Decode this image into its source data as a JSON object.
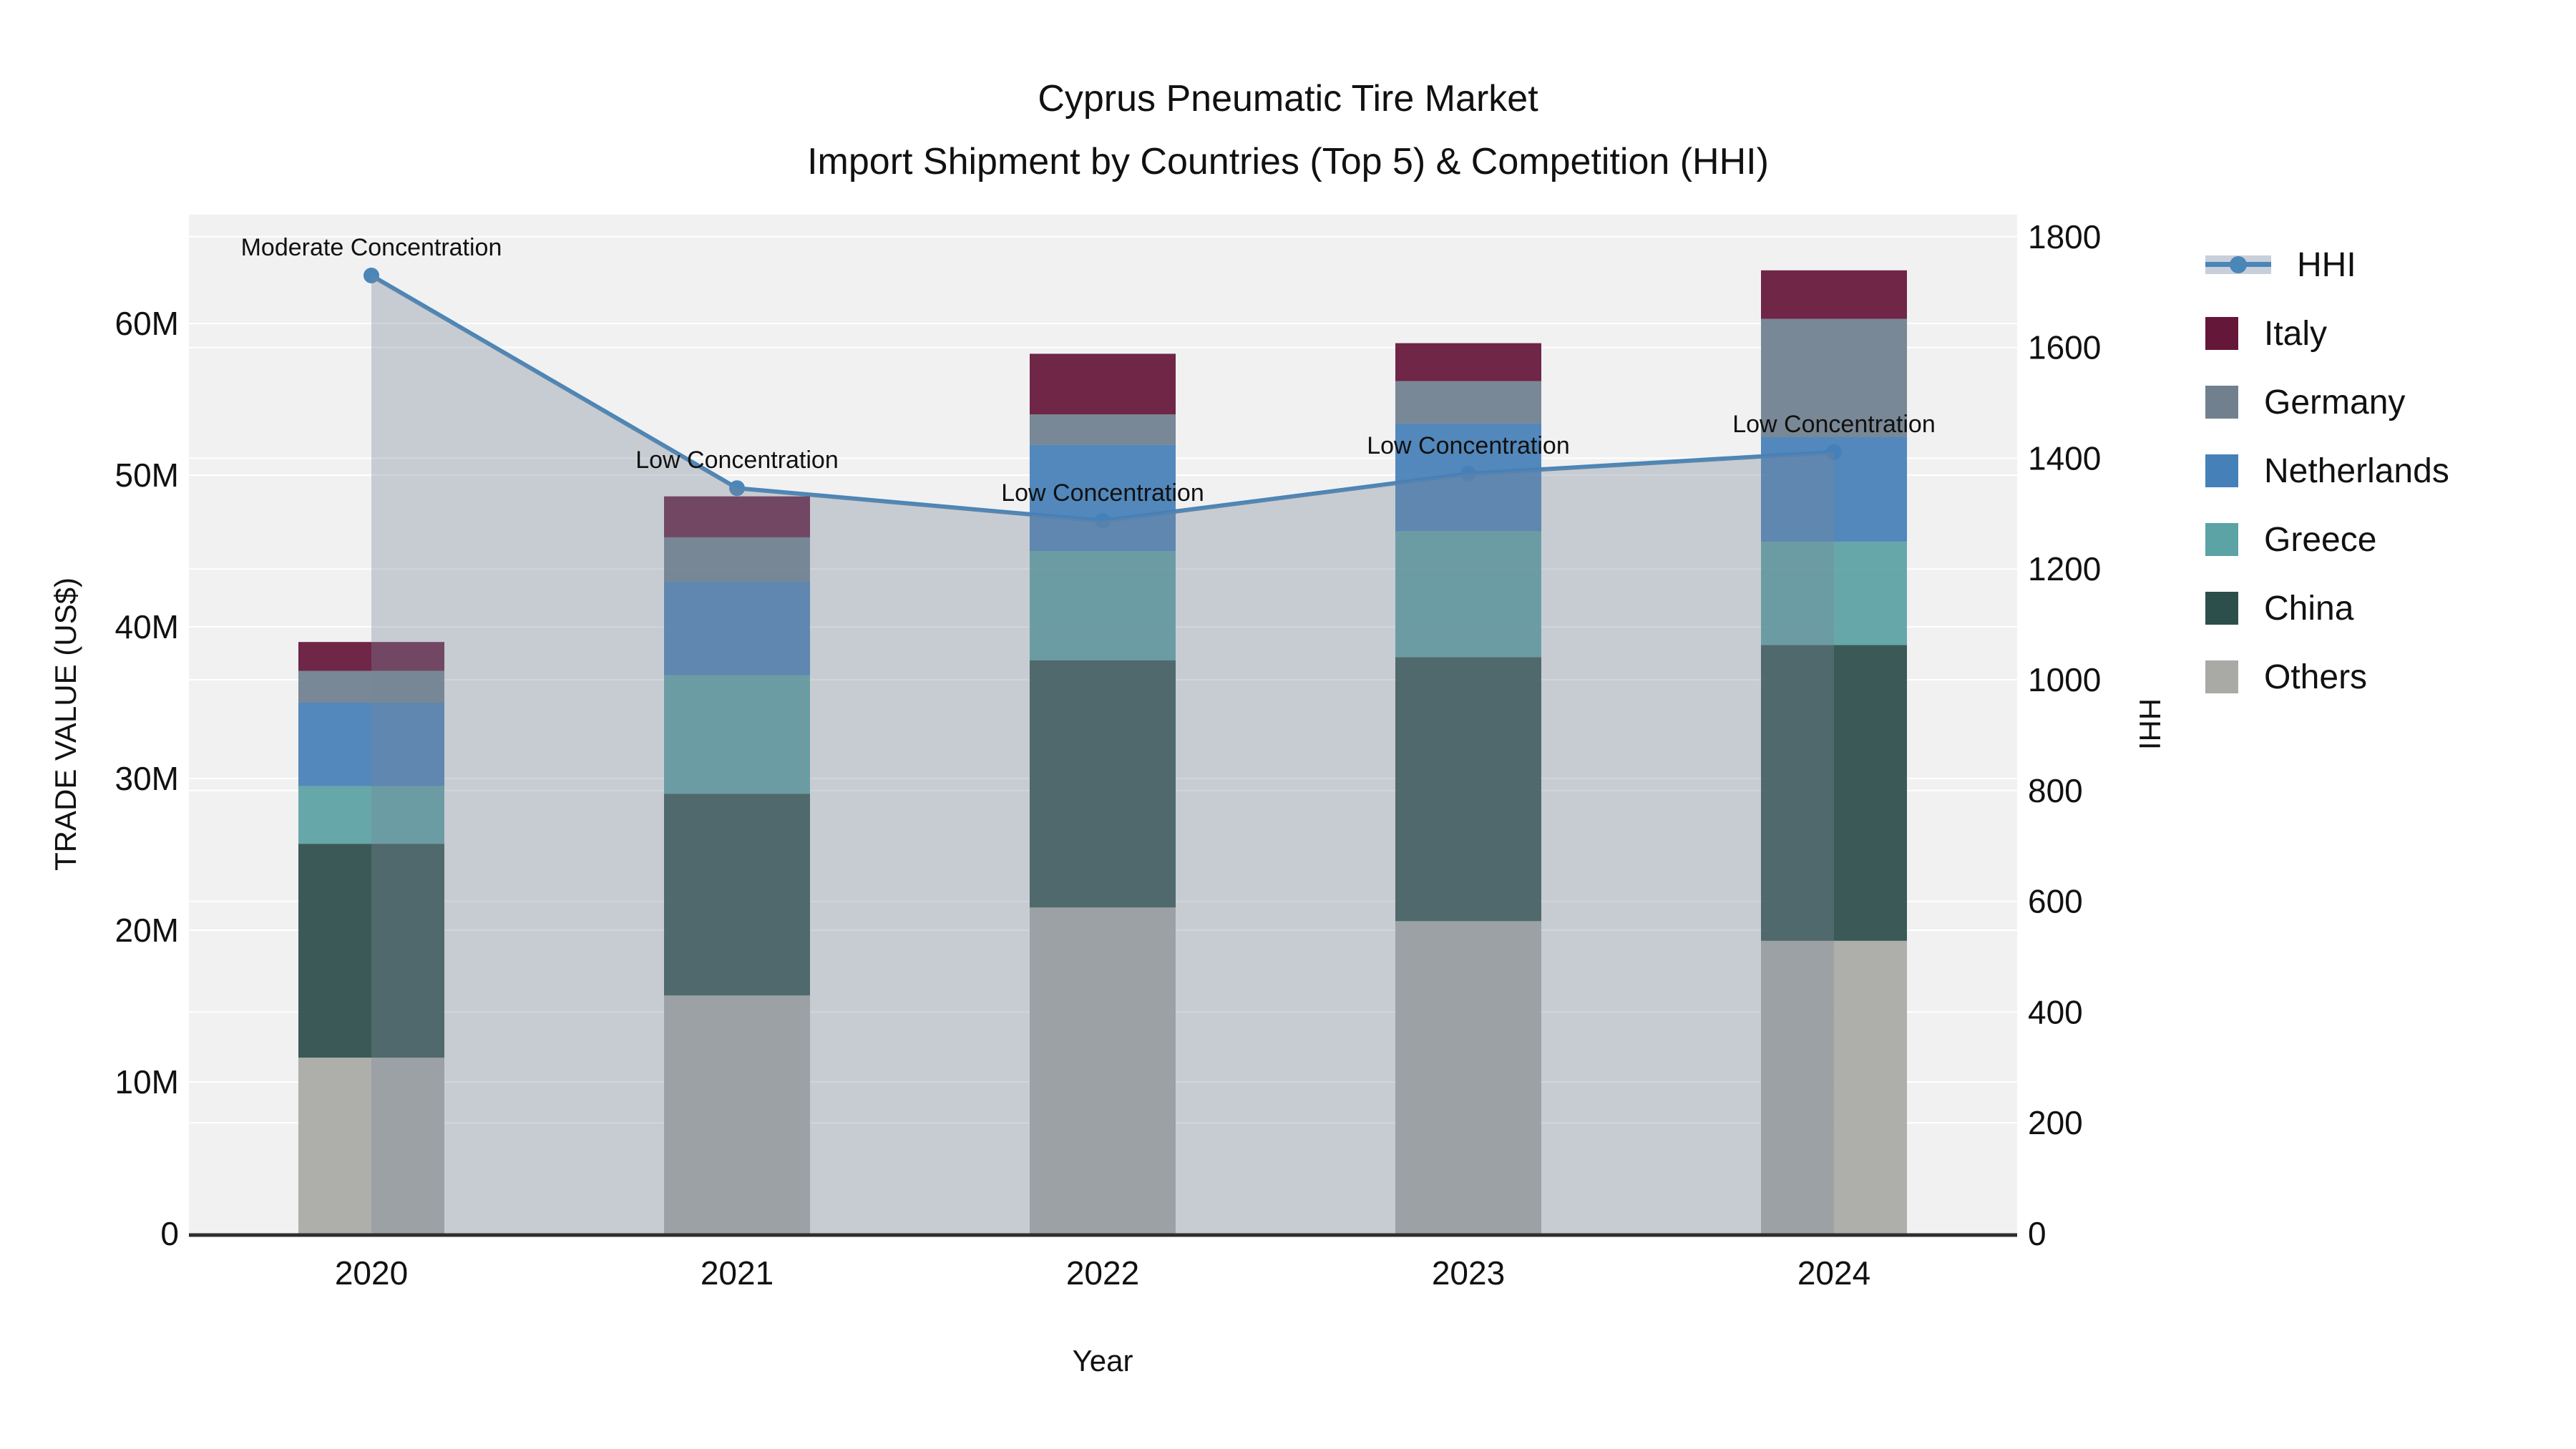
{
  "title": {
    "line1": "Cyprus Pneumatic Tire Market",
    "line2": "Import Shipment by Countries (Top 5) & Competition (HHI)"
  },
  "axes": {
    "x": {
      "title": "Year",
      "ticks": [
        "2020",
        "2021",
        "2022",
        "2023",
        "2024"
      ]
    },
    "y_left": {
      "title": "TRADE VALUE (US$)",
      "ticks": [
        {
          "label": "0",
          "value": 0
        },
        {
          "label": "10M",
          "value": 10
        },
        {
          "label": "20M",
          "value": 20
        },
        {
          "label": "30M",
          "value": 30
        },
        {
          "label": "40M",
          "value": 40
        },
        {
          "label": "50M",
          "value": 50
        },
        {
          "label": "60M",
          "value": 60
        }
      ]
    },
    "y_right": {
      "title": "HHI",
      "ticks": [
        {
          "label": "0",
          "value": 0
        },
        {
          "label": "200",
          "value": 200
        },
        {
          "label": "400",
          "value": 400
        },
        {
          "label": "600",
          "value": 600
        },
        {
          "label": "800",
          "value": 800
        },
        {
          "label": "1000",
          "value": 1000
        },
        {
          "label": "1200",
          "value": 1200
        },
        {
          "label": "1400",
          "value": 1400
        },
        {
          "label": "1600",
          "value": 1600
        },
        {
          "label": "1800",
          "value": 1800
        }
      ]
    }
  },
  "chart_data": {
    "type": "combo: stacked-bar (left axis) + line-with-area (right axis)",
    "categories": [
      "2020",
      "2021",
      "2022",
      "2023",
      "2024"
    ],
    "bar_unit": "US$ millions",
    "stack_order_bottom_to_top": [
      "Others",
      "China",
      "Greece",
      "Netherlands",
      "Germany",
      "Italy"
    ],
    "series": [
      {
        "name": "Italy",
        "color": "#65173a",
        "values": [
          1.9,
          2.7,
          4.0,
          2.5,
          3.2
        ]
      },
      {
        "name": "Germany",
        "color": "#70808f",
        "values": [
          2.1,
          2.9,
          2.0,
          2.8,
          7.8
        ]
      },
      {
        "name": "Netherlands",
        "color": "#4680b8",
        "values": [
          5.5,
          6.2,
          7.0,
          7.1,
          6.9
        ]
      },
      {
        "name": "Greece",
        "color": "#5ba3a4",
        "values": [
          3.8,
          7.8,
          7.2,
          8.3,
          6.8
        ]
      },
      {
        "name": "China",
        "color": "#2d4f4b",
        "values": [
          14.1,
          13.3,
          16.3,
          17.4,
          19.5
        ]
      },
      {
        "name": "Others",
        "color": "#a9aaa6",
        "values": [
          11.6,
          15.7,
          21.5,
          20.6,
          19.3
        ]
      }
    ],
    "hhi": {
      "name": "HHI",
      "line_color": "#4a86b8",
      "area_color": "rgba(119,136,153,0.35)",
      "values": [
        1730,
        1346,
        1287,
        1372,
        1411
      ],
      "annotations": [
        "Moderate Concentration",
        "Low Concentration",
        "Low Concentration",
        "Low Concentration",
        "Low Concentration"
      ]
    },
    "y_left_range_m": [
      0,
      67.2
    ],
    "y_right_range": [
      0,
      1840
    ],
    "grid": true,
    "legend_position": "right"
  },
  "legend": {
    "items": [
      {
        "label": "HHI",
        "type": "line"
      },
      {
        "label": "Italy",
        "series": "Italy"
      },
      {
        "label": "Germany",
        "series": "Germany"
      },
      {
        "label": "Netherlands",
        "series": "Netherlands"
      },
      {
        "label": "Greece",
        "series": "Greece"
      },
      {
        "label": "China",
        "series": "China"
      },
      {
        "label": "Others",
        "series": "Others"
      }
    ]
  },
  "colors": {
    "plot_bg": "#f1f1f2",
    "grid": "#ffffff",
    "axis_line": "#2e2e2e",
    "text": "#111111",
    "accent_line": "#4a86b8"
  }
}
